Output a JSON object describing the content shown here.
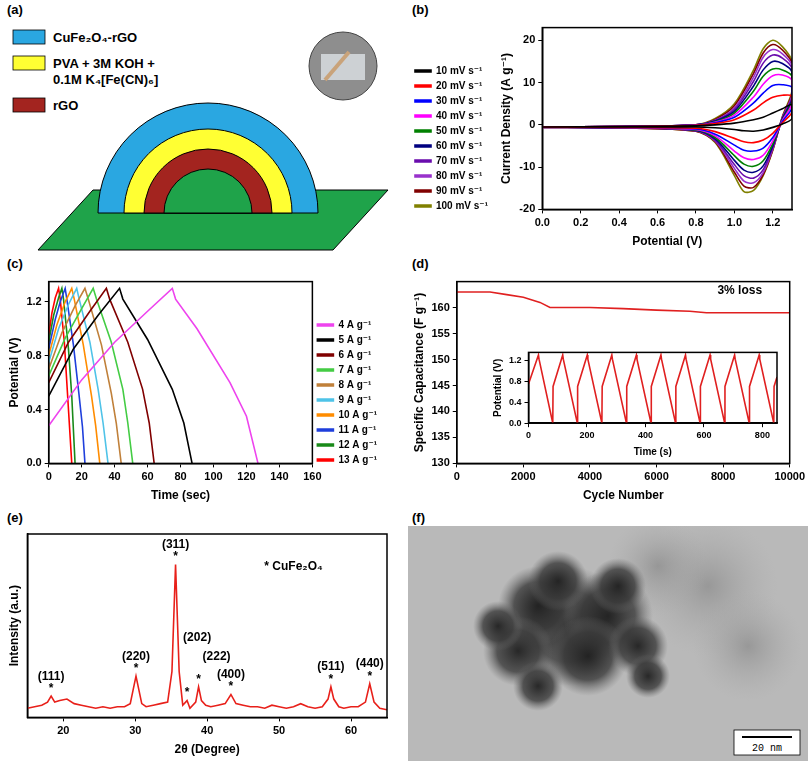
{
  "diagram": {
    "panel": "(a)",
    "layers": [
      [
        "CuFe₂O₄-rGO"
      ],
      [
        "PVA + 3M KOH +",
        "0.1M K₄[Fe(CN)₆]"
      ],
      [
        "rGO"
      ]
    ]
  },
  "chart_data": [
    {
      "panel": "(b)",
      "type": "line",
      "x_label": "Potential (V)",
      "y_label": "Current Density (A g⁻¹)",
      "xlim": [
        0,
        1.3
      ],
      "xticks": [
        {
          "value": 0,
          "label": "0.0"
        },
        {
          "value": 0.2,
          "label": "0.2"
        },
        {
          "value": 0.4,
          "label": "0.4"
        },
        {
          "value": 0.6,
          "label": "0.6"
        },
        {
          "value": 0.8,
          "label": "0.8"
        },
        {
          "value": 1,
          "label": "1.0"
        },
        {
          "value": 1.2,
          "label": "1.2"
        }
      ],
      "ylim": [
        -20,
        23
      ],
      "yticks": [
        -20,
        -10,
        0,
        10,
        20
      ],
      "grid": false,
      "legend": "left",
      "x": [
        0,
        0.4,
        0.8,
        0.9,
        1.0,
        1.1,
        1.15,
        1.2,
        1.25,
        1.3,
        1.3,
        1.25,
        1.2,
        1.15,
        1.1,
        1.05,
        1.0,
        0.9,
        0.8,
        0.4,
        0
      ],
      "series": [
        {
          "name": "10 mV s⁻¹",
          "color": "#000000",
          "values": [
            -0.5,
            -0.4,
            -0.2,
            0,
            0.4,
            1.2,
            1.8,
            2.8,
            3.8,
            4.8,
            1.5,
            0.2,
            -0.6,
            -1.2,
            -1.5,
            -1.4,
            -1.1,
            -0.7,
            -0.5,
            -0.5,
            -0.5
          ]
        },
        {
          "name": "20 mV s⁻¹",
          "color": "#ff0000",
          "values": [
            -0.5,
            -0.4,
            -0.1,
            0.3,
            1.2,
            3.5,
            5.2,
            6.5,
            7,
            6.8,
            3,
            0.5,
            -2,
            -3.6,
            -4.2,
            -4,
            -3.2,
            -1.6,
            -0.8,
            -0.6,
            -0.5
          ]
        },
        {
          "name": "30 mV s⁻¹",
          "color": "#0000ff",
          "values": [
            -0.5,
            -0.4,
            -0.1,
            0.5,
            1.8,
            5.2,
            7.5,
            9.3,
            9.5,
            8.8,
            4,
            0.8,
            -3,
            -5.5,
            -6.2,
            -6,
            -4.8,
            -2.2,
            -1,
            -0.6,
            -0.5
          ]
        },
        {
          "name": "40 mV s⁻¹",
          "color": "#ff00ff",
          "values": [
            -0.5,
            -0.4,
            -0.1,
            0.6,
            2.3,
            6.6,
            9.6,
            11.6,
            11.8,
            10.5,
            5,
            1,
            -3.8,
            -7.2,
            -8.2,
            -7.8,
            -6.2,
            -2.6,
            -1.1,
            -0.6,
            -0.5
          ]
        },
        {
          "name": "50 mV s⁻¹",
          "color": "#008000",
          "values": [
            -0.5,
            -0.4,
            -0.1,
            0.7,
            2.8,
            8,
            11.5,
            13.2,
            13,
            11.5,
            5.5,
            1.2,
            -4.5,
            -8.5,
            -9.8,
            -9.3,
            -7.3,
            -3,
            -1.2,
            -0.6,
            -0.5
          ]
        },
        {
          "name": "60 mV s⁻¹",
          "color": "#000080",
          "values": [
            -0.5,
            -0.4,
            0,
            0.9,
            3.2,
            9.2,
            13,
            15,
            14.5,
            12.5,
            6,
            1.4,
            -5,
            -9.7,
            -11.2,
            -10.7,
            -8.4,
            -3.3,
            -1.3,
            -0.7,
            -0.5
          ]
        },
        {
          "name": "70 mV s⁻¹",
          "color": "#6a0dad",
          "values": [
            -0.5,
            -0.4,
            0,
            1,
            3.6,
            10.3,
            14.6,
            16.5,
            15.8,
            13.3,
            6.5,
            1.6,
            -5.4,
            -10.6,
            -12.6,
            -12,
            -9.4,
            -3.6,
            -1.4,
            -0.7,
            -0.6
          ]
        },
        {
          "name": "80 mV s⁻¹",
          "color": "#9932cc",
          "values": [
            -0.5,
            -0.4,
            0,
            1.1,
            4,
            11.3,
            16,
            17.8,
            16.8,
            14,
            7,
            1.7,
            -5.7,
            -11.3,
            -13.7,
            -13.3,
            -10.3,
            -3.8,
            -1.4,
            -0.7,
            -0.6
          ]
        },
        {
          "name": "90 mV s⁻¹",
          "color": "#800000",
          "values": [
            -0.5,
            -0.4,
            0,
            1.3,
            4.5,
            12.2,
            17,
            19,
            17.7,
            14.5,
            7.5,
            1.8,
            -5.9,
            -11.8,
            -14.8,
            -14.5,
            -11.2,
            -4,
            -1.5,
            -0.7,
            -0.6
          ]
        },
        {
          "name": "100 mV s⁻¹",
          "color": "#808000",
          "values": [
            -0.5,
            -0.4,
            0,
            1.5,
            5,
            13,
            18,
            20,
            18.5,
            15,
            8,
            2,
            -6,
            -12,
            -15.5,
            -15.8,
            -12,
            -4.2,
            -1.5,
            -0.7,
            -0.6
          ]
        }
      ]
    },
    {
      "panel": "(c)",
      "type": "line",
      "x_label": "Time (sec)",
      "y_label": "Potential (V)",
      "xlim": [
        0,
        160
      ],
      "xticks": [
        0,
        20,
        40,
        60,
        80,
        100,
        120,
        140,
        160
      ],
      "ylim": [
        0,
        1.35
      ],
      "yticks": [
        {
          "value": 0,
          "label": "0.0"
        },
        {
          "value": 0.4,
          "label": "0.4"
        },
        {
          "value": 0.8,
          "label": "0.8"
        },
        {
          "value": 1.2,
          "label": "1.2"
        }
      ],
      "grid": false,
      "legend": "right",
      "series": [
        {
          "name": "4 A g⁻¹",
          "color": "#ee44ee",
          "x": [
            0,
            20,
            40,
            60,
            75,
            77,
            90,
            110,
            120,
            127
          ],
          "values": [
            0.28,
            0.62,
            0.9,
            1.13,
            1.3,
            1.22,
            1.0,
            0.6,
            0.35,
            0
          ]
        },
        {
          "name": "5 A g⁻¹",
          "color": "#000000",
          "x": [
            0,
            15,
            30,
            43,
            45,
            60,
            75,
            82,
            87
          ],
          "values": [
            0.5,
            0.85,
            1.1,
            1.3,
            1.22,
            0.92,
            0.55,
            0.3,
            0
          ]
        },
        {
          "name": "6 A g⁻¹",
          "color": "#800000",
          "x": [
            0,
            12,
            25,
            35,
            37,
            48,
            57,
            61,
            64
          ],
          "values": [
            0.6,
            0.9,
            1.13,
            1.3,
            1.22,
            0.9,
            0.55,
            0.3,
            0
          ]
        },
        {
          "name": "7 A g⁻¹",
          "color": "#44cc44",
          "x": [
            0,
            10,
            20,
            27,
            29,
            38,
            45,
            48,
            51
          ],
          "values": [
            0.65,
            0.93,
            1.15,
            1.3,
            1.22,
            0.9,
            0.55,
            0.3,
            0
          ]
        },
        {
          "name": "8 A g⁻¹",
          "color": "#c0803a",
          "x": [
            0,
            8,
            16,
            22,
            24,
            32,
            38,
            41,
            44
          ],
          "values": [
            0.7,
            0.97,
            1.17,
            1.3,
            1.22,
            0.88,
            0.52,
            0.3,
            0
          ]
        },
        {
          "name": "9 A g⁻¹",
          "color": "#4fc3e8",
          "x": [
            0,
            6,
            12,
            17,
            18.5,
            25,
            30,
            33,
            36
          ],
          "values": [
            0.75,
            1.0,
            1.18,
            1.3,
            1.22,
            0.9,
            0.55,
            0.3,
            0
          ]
        },
        {
          "name": "10 A g⁻¹",
          "color": "#ff8c00",
          "x": [
            0,
            5,
            10,
            14,
            15.5,
            21,
            26,
            28.5,
            31
          ],
          "values": [
            0.8,
            1.03,
            1.2,
            1.3,
            1.22,
            0.88,
            0.5,
            0.28,
            0
          ]
        },
        {
          "name": "11 A g⁻¹",
          "color": "#1f3fdc",
          "x": [
            0,
            4,
            7,
            10,
            11,
            15,
            18.5,
            20.5,
            22
          ],
          "values": [
            0.85,
            1.07,
            1.2,
            1.3,
            1.22,
            0.88,
            0.5,
            0.27,
            0
          ]
        },
        {
          "name": "12 A g⁻¹",
          "color": "#1a8a1a",
          "x": [
            0,
            3,
            6,
            8,
            9,
            12,
            14,
            15,
            16
          ],
          "values": [
            0.9,
            1.1,
            1.23,
            1.3,
            1.22,
            0.85,
            0.5,
            0.25,
            0
          ]
        },
        {
          "name": "13 A g⁻¹",
          "color": "#ff0000",
          "x": [
            0,
            2,
            4,
            6,
            7,
            9.5,
            11.5,
            13,
            14
          ],
          "values": [
            0.95,
            1.12,
            1.23,
            1.3,
            1.22,
            0.9,
            0.5,
            0.2,
            0
          ]
        }
      ]
    },
    {
      "panel": "(d)",
      "type": "line",
      "x_label": "Cycle Number",
      "y_label": "Specific Capacitance (F g⁻¹)",
      "xlim": [
        0,
        10000
      ],
      "xticks": [
        0,
        2000,
        4000,
        6000,
        8000,
        10000
      ],
      "ylim": [
        130,
        165
      ],
      "yticks": [
        130,
        135,
        140,
        145,
        150,
        155,
        160
      ],
      "grid": false,
      "color": "#e02020",
      "x": [
        0,
        500,
        1000,
        1500,
        2000,
        2500,
        2800,
        3500,
        4000,
        5000,
        6000,
        7000,
        7500,
        8000,
        9000,
        10000
      ],
      "values": [
        163,
        163,
        163,
        162.5,
        162,
        161,
        160,
        160,
        160,
        159.8,
        159.5,
        159.3,
        159,
        159,
        159,
        159
      ],
      "annotations": [
        {
          "x": 8500,
          "y": 162,
          "text": "3% loss"
        }
      ],
      "inset": {
        "type": "line",
        "x_label": "Time (s)",
        "y_label": "Potential (V)",
        "xlim": [
          0,
          850
        ],
        "xticks": [
          0,
          200,
          400,
          600,
          800
        ],
        "ylim": [
          0,
          1.35
        ],
        "yticks": [
          {
            "value": 0,
            "label": "0.0"
          },
          {
            "value": 0.4,
            "label": "0.4"
          },
          {
            "value": 0.8,
            "label": "0.8"
          },
          {
            "value": 1.2,
            "label": "1.2"
          }
        ],
        "grid": false,
        "color": "#e02020",
        "x": [
          0,
          34,
          36,
          83,
          84,
          117,
          119,
          167,
          168,
          201,
          203,
          251,
          252,
          285,
          287,
          335,
          336,
          369,
          371,
          419,
          420,
          453,
          455,
          503,
          504,
          537,
          539,
          587,
          588,
          621,
          623,
          671,
          672,
          705,
          707,
          755,
          756,
          789,
          791,
          839,
          840,
          850
        ],
        "values": [
          0.75,
          1.3,
          1.22,
          0,
          0.7,
          1.3,
          1.22,
          0,
          0.7,
          1.3,
          1.22,
          0,
          0.7,
          1.3,
          1.22,
          0,
          0.7,
          1.3,
          1.22,
          0,
          0.7,
          1.3,
          1.22,
          0,
          0.7,
          1.3,
          1.22,
          0,
          0.7,
          1.3,
          1.22,
          0,
          0.7,
          1.3,
          1.22,
          0,
          0.7,
          1.3,
          1.22,
          0,
          0.7,
          0.88
        ]
      }
    },
    {
      "panel": "(e)",
      "type": "line",
      "x_label": "2θ (Degree)",
      "y_label": "Intensity (a.u.)",
      "xlim": [
        15,
        65
      ],
      "xticks": [
        20,
        30,
        40,
        50,
        60
      ],
      "ylim": [
        0,
        120
      ],
      "yticks": [],
      "tick_labels": "x",
      "grid": false,
      "color": "#e8201a",
      "x": [
        15,
        16,
        17,
        17.8,
        18.3,
        18.8,
        19.5,
        20.5,
        21.5,
        22.5,
        23.5,
        24.5,
        25.5,
        26.5,
        27.5,
        28.5,
        29.3,
        29.7,
        30.1,
        30.5,
        30.9,
        31.5,
        32.5,
        33.5,
        34.5,
        35.1,
        35.6,
        36.1,
        36.6,
        37.2,
        37.6,
        38.4,
        38.8,
        39.2,
        39.8,
        40.5,
        41.5,
        42.5,
        43.3,
        44,
        45,
        46,
        47,
        48,
        49,
        50,
        51,
        52,
        53,
        54,
        55,
        56,
        56.8,
        57.2,
        57.6,
        58.3,
        59,
        60,
        61,
        62,
        62.6,
        63.2,
        64,
        65
      ],
      "values": [
        6,
        7,
        8,
        10,
        14,
        10,
        11,
        12,
        9,
        8,
        7,
        6,
        7,
        6,
        7,
        7,
        9,
        18,
        27,
        18,
        9,
        7,
        8,
        9,
        10,
        30,
        100,
        30,
        8,
        11,
        6,
        10,
        20,
        11,
        8,
        7,
        8,
        9,
        15,
        9,
        8,
        7,
        7,
        6,
        8,
        7,
        6,
        7,
        9,
        7,
        6,
        7,
        12,
        20,
        12,
        7,
        6,
        7,
        7,
        10,
        22,
        10,
        6,
        5
      ],
      "annotations": [
        {
          "x": 18.3,
          "y": 15,
          "text": "*"
        },
        {
          "x": 18.3,
          "y": 23,
          "text": "(111)"
        },
        {
          "x": 30.1,
          "y": 28,
          "text": "*"
        },
        {
          "x": 30.1,
          "y": 36,
          "text": "(220)"
        },
        {
          "x": 35.6,
          "y": 101,
          "text": "*"
        },
        {
          "x": 35.6,
          "y": 109,
          "text": "(311)"
        },
        {
          "x": 37.2,
          "y": 12,
          "text": "*"
        },
        {
          "x": 38.6,
          "y": 48,
          "text": "(202)"
        },
        {
          "x": 38.8,
          "y": 21,
          "text": "*"
        },
        {
          "x": 41.3,
          "y": 36,
          "text": "(222)"
        },
        {
          "x": 43.3,
          "y": 16,
          "text": "*"
        },
        {
          "x": 43.3,
          "y": 24,
          "text": "(400)"
        },
        {
          "x": 57.2,
          "y": 21,
          "text": "*"
        },
        {
          "x": 57.2,
          "y": 29,
          "text": "(511)"
        },
        {
          "x": 62.6,
          "y": 23,
          "text": "*"
        },
        {
          "x": 62.6,
          "y": 31,
          "text": "(440)"
        },
        {
          "x": 52,
          "y": 95,
          "text": "* CuFe₂O₄"
        }
      ]
    }
  ],
  "image": {
    "panel": "(f)",
    "scale_bar": "20 nm"
  }
}
